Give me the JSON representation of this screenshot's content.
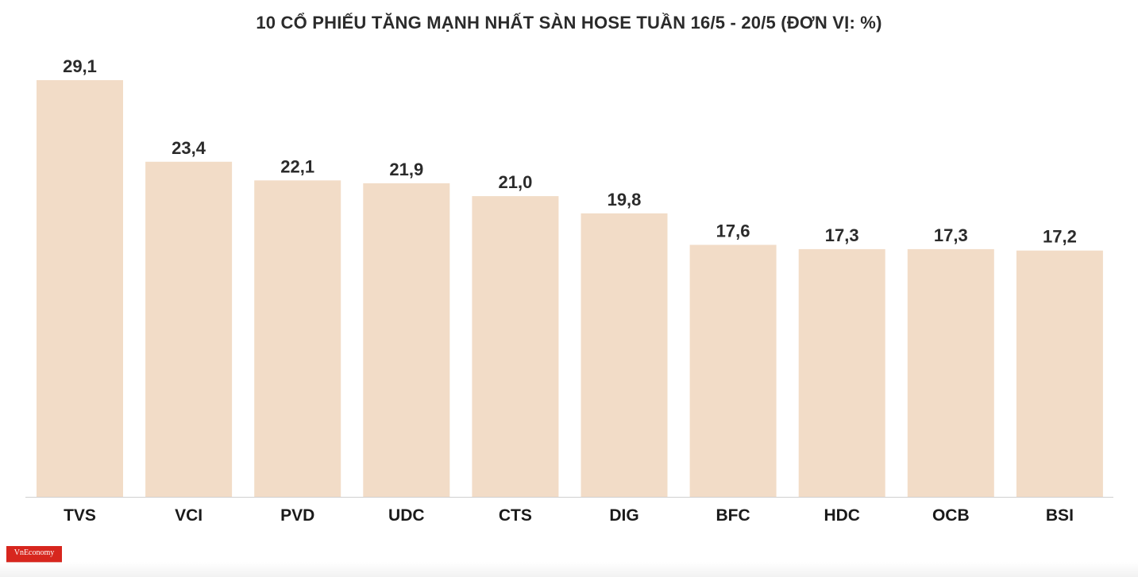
{
  "chart_data": {
    "type": "bar",
    "title": "10 CỔ PHIẾU TĂNG MẠNH NHẤT SÀN HOSE TUẦN 16/5 - 20/5 (ĐƠN VỊ: %)",
    "categories": [
      "TVS",
      "VCI",
      "PVD",
      "UDC",
      "CTS",
      "DIG",
      "BFC",
      "HDC",
      "OCB",
      "BSI"
    ],
    "values": [
      29.1,
      23.4,
      22.1,
      21.9,
      21.0,
      19.8,
      17.6,
      17.3,
      17.3,
      17.2
    ],
    "value_labels": [
      "29,1",
      "23,4",
      "22,1",
      "21,9",
      "21,0",
      "19,8",
      "17,6",
      "17,3",
      "17,3",
      "17,2"
    ],
    "xlabel": "",
    "ylabel": "",
    "ylim": [
      0,
      29.1
    ],
    "grid": false,
    "legend": "none",
    "bar_color": "#f2dcc7"
  },
  "brand": {
    "logo_text": "VnEconomy",
    "logo_color": "#d7261e"
  }
}
